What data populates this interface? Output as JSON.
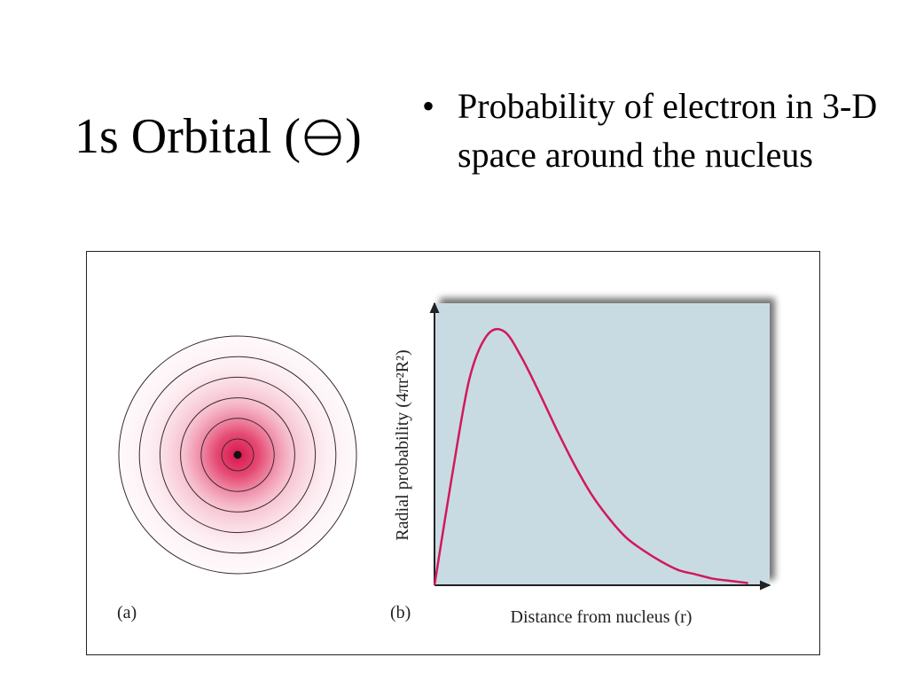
{
  "slide": {
    "title_prefix": "1s Orbital (",
    "title_symbol": "⊖",
    "title_suffix": ")",
    "bullets": [
      "Probability of electron in 3-D space around the nucleus"
    ]
  },
  "figure": {
    "panel_a_label": "(a)",
    "panel_b_label": "(b)",
    "x_axis_label": "Distance from nucleus (r)",
    "y_axis_label": "Radial probability (4πr²R²)",
    "colors": {
      "orbital_fill": "#e0325a",
      "curve": "#d1195b",
      "plot_background": "#c9dbe2",
      "axis": "#222222"
    },
    "orbital_contour_count": 6
  },
  "chart_data": {
    "type": "line",
    "title": "",
    "xlabel": "Distance from nucleus (r)",
    "ylabel": "Radial probability (4πr²R²)",
    "x_ticks": [],
    "y_ticks": [],
    "grid": false,
    "xlim": [
      0,
      10
    ],
    "ylim": [
      0,
      1.3
    ],
    "series": [
      {
        "x": [
          0,
          0.5,
          1,
          1.5,
          2,
          2.5,
          3,
          3.5,
          4,
          4.5,
          5,
          5.5,
          6,
          6.5,
          7,
          7.5,
          8,
          8.5,
          9
        ],
        "y": [
          0,
          0.5,
          0.95,
          1.15,
          1.17,
          1.05,
          0.89,
          0.72,
          0.56,
          0.42,
          0.31,
          0.22,
          0.16,
          0.11,
          0.07,
          0.05,
          0.03,
          0.02,
          0.01
        ]
      }
    ]
  }
}
